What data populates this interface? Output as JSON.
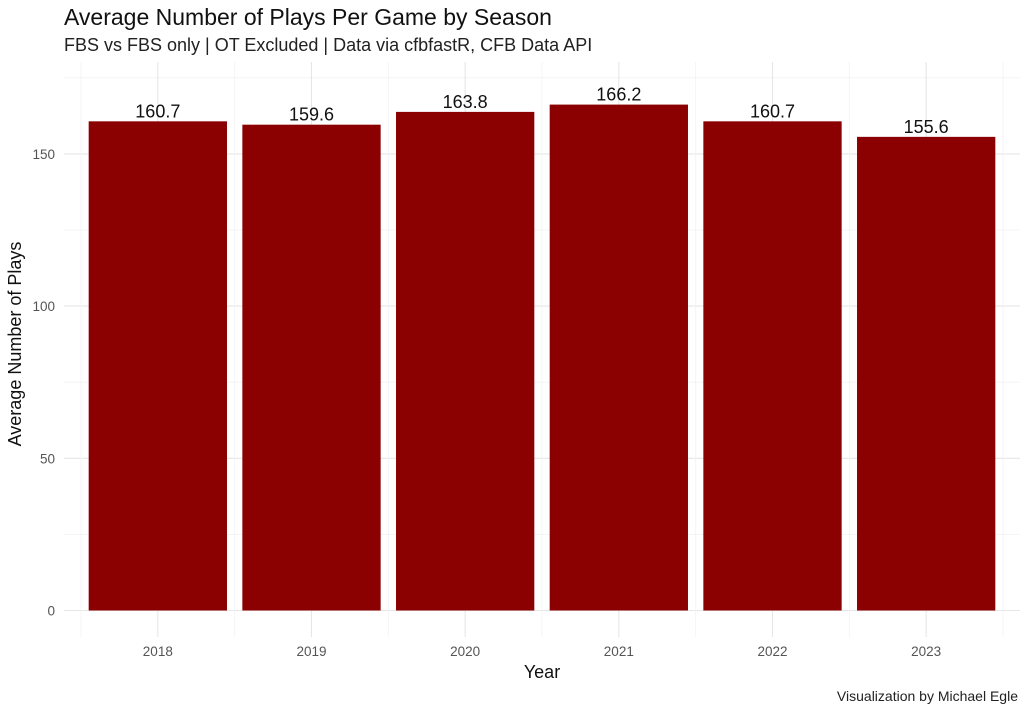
{
  "chart_data": {
    "type": "bar",
    "title": "Average Number of Plays Per Game by Season",
    "subtitle": "FBS vs FBS only | OT Excluded | Data via cfbfastR, CFB Data API",
    "xlabel": "Year",
    "ylabel": "Average Number of Plays",
    "caption": "Visualization by Michael Egle",
    "categories": [
      "2018",
      "2019",
      "2020",
      "2021",
      "2022",
      "2023"
    ],
    "values": [
      160.7,
      159.6,
      163.8,
      166.2,
      160.7,
      155.6
    ],
    "data_labels": [
      "160.7",
      "159.6",
      "163.8",
      "166.2",
      "160.7",
      "155.6"
    ],
    "ylim": [
      0,
      175
    ],
    "yticks": [
      0,
      50,
      100,
      150
    ],
    "grid": true,
    "bar_color": "#8b0000",
    "legend": "none"
  }
}
